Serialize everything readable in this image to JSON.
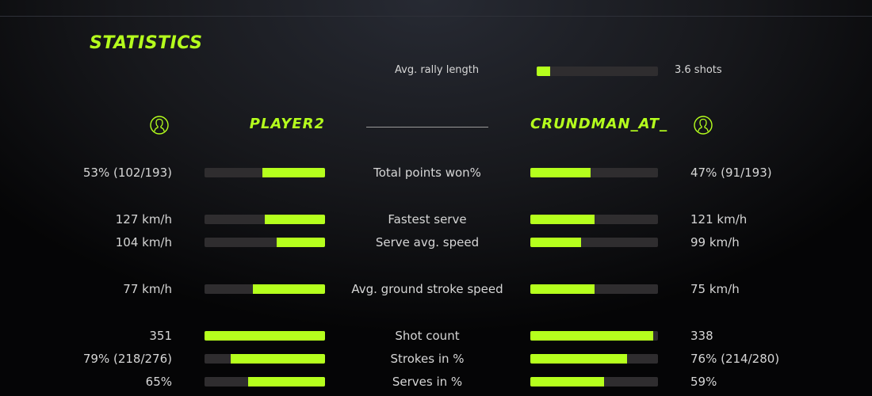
{
  "title": "STATISTICS",
  "accent": "#b5ff1d",
  "rally": {
    "label": "Avg. rally length",
    "value": "3.6 shots",
    "fill": 0.11
  },
  "players": {
    "left": {
      "name": "PLAYER2",
      "icon": "user-avatar-icon"
    },
    "right": {
      "name": "CRUNDMAN_AT_",
      "icon": "user-avatar-icon"
    }
  },
  "rows": [
    {
      "label": "Total points won%",
      "left": "53% (102/193)",
      "right": "47% (91/193)",
      "left_fill": 0.52,
      "right_fill": 0.47
    },
    {
      "label": "Fastest serve",
      "left": "127 km/h",
      "right": "121 km/h",
      "left_fill": 0.5,
      "right_fill": 0.5
    },
    {
      "label": "Serve avg. speed",
      "left": "104 km/h",
      "right": "99 km/h",
      "left_fill": 0.4,
      "right_fill": 0.4
    },
    {
      "label": "Avg. ground stroke speed",
      "left": "77 km/h",
      "right": "75 km/h",
      "left_fill": 0.6,
      "right_fill": 0.5
    },
    {
      "label": "Shot count",
      "left": "351",
      "right": "338",
      "left_fill": 1.0,
      "right_fill": 0.96
    },
    {
      "label": "Strokes in %",
      "left": "79% (218/276)",
      "right": "76% (214/280)",
      "left_fill": 0.78,
      "right_fill": 0.76
    },
    {
      "label": "Serves in %",
      "left": "65%",
      "right": "59%",
      "left_fill": 0.64,
      "right_fill": 0.58
    }
  ]
}
